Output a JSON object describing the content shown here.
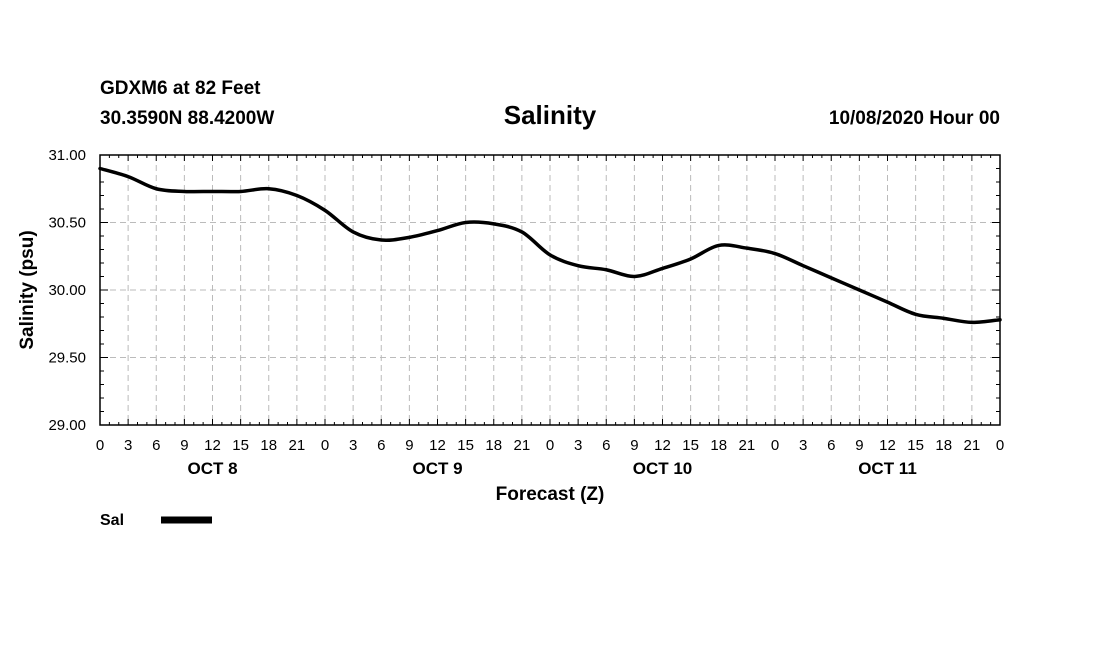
{
  "header": {
    "station": "GDXM6 at 82 Feet",
    "coords": "30.3590N 88.4200W",
    "title": "Salinity",
    "datetime": "10/08/2020 Hour 00"
  },
  "chart_data": {
    "type": "line",
    "title": "Salinity",
    "xlabel": "Forecast (Z)",
    "ylabel": "Salinity (psu)",
    "ylim": [
      29.0,
      31.0
    ],
    "xlim": [
      0,
      96
    ],
    "y_ticks": [
      "29.00",
      "29.50",
      "30.00",
      "30.50",
      "31.00"
    ],
    "x_tick_labels": [
      "0",
      "3",
      "6",
      "9",
      "12",
      "15",
      "18",
      "21",
      "0",
      "3",
      "6",
      "9",
      "12",
      "15",
      "18",
      "21",
      "0",
      "3",
      "6",
      "9",
      "12",
      "15",
      "18",
      "21",
      "0",
      "3",
      "6",
      "9",
      "12",
      "15",
      "18",
      "21",
      "0"
    ],
    "day_labels": [
      {
        "label": "OCT 8",
        "hour": 12
      },
      {
        "label": "OCT 9",
        "hour": 36
      },
      {
        "label": "OCT 10",
        "hour": 60
      },
      {
        "label": "OCT 11",
        "hour": 84
      }
    ],
    "grid": true,
    "series": [
      {
        "name": "Sal",
        "color": "#000000",
        "x": [
          0,
          3,
          6,
          9,
          12,
          15,
          18,
          21,
          24,
          27,
          30,
          33,
          36,
          39,
          42,
          45,
          48,
          51,
          54,
          57,
          60,
          63,
          66,
          69,
          72,
          75,
          78,
          81,
          84,
          87,
          90,
          93,
          96
        ],
        "values": [
          30.9,
          30.84,
          30.75,
          30.73,
          30.73,
          30.73,
          30.75,
          30.7,
          30.59,
          30.43,
          30.37,
          30.39,
          30.44,
          30.5,
          30.49,
          30.43,
          30.26,
          30.18,
          30.15,
          30.1,
          30.16,
          30.23,
          30.33,
          30.31,
          30.27,
          30.18,
          30.09,
          30.0,
          29.91,
          29.82,
          29.79,
          29.76,
          29.78
        ]
      }
    ],
    "legend": {
      "label": "Sal",
      "position": "bottom-left"
    }
  }
}
